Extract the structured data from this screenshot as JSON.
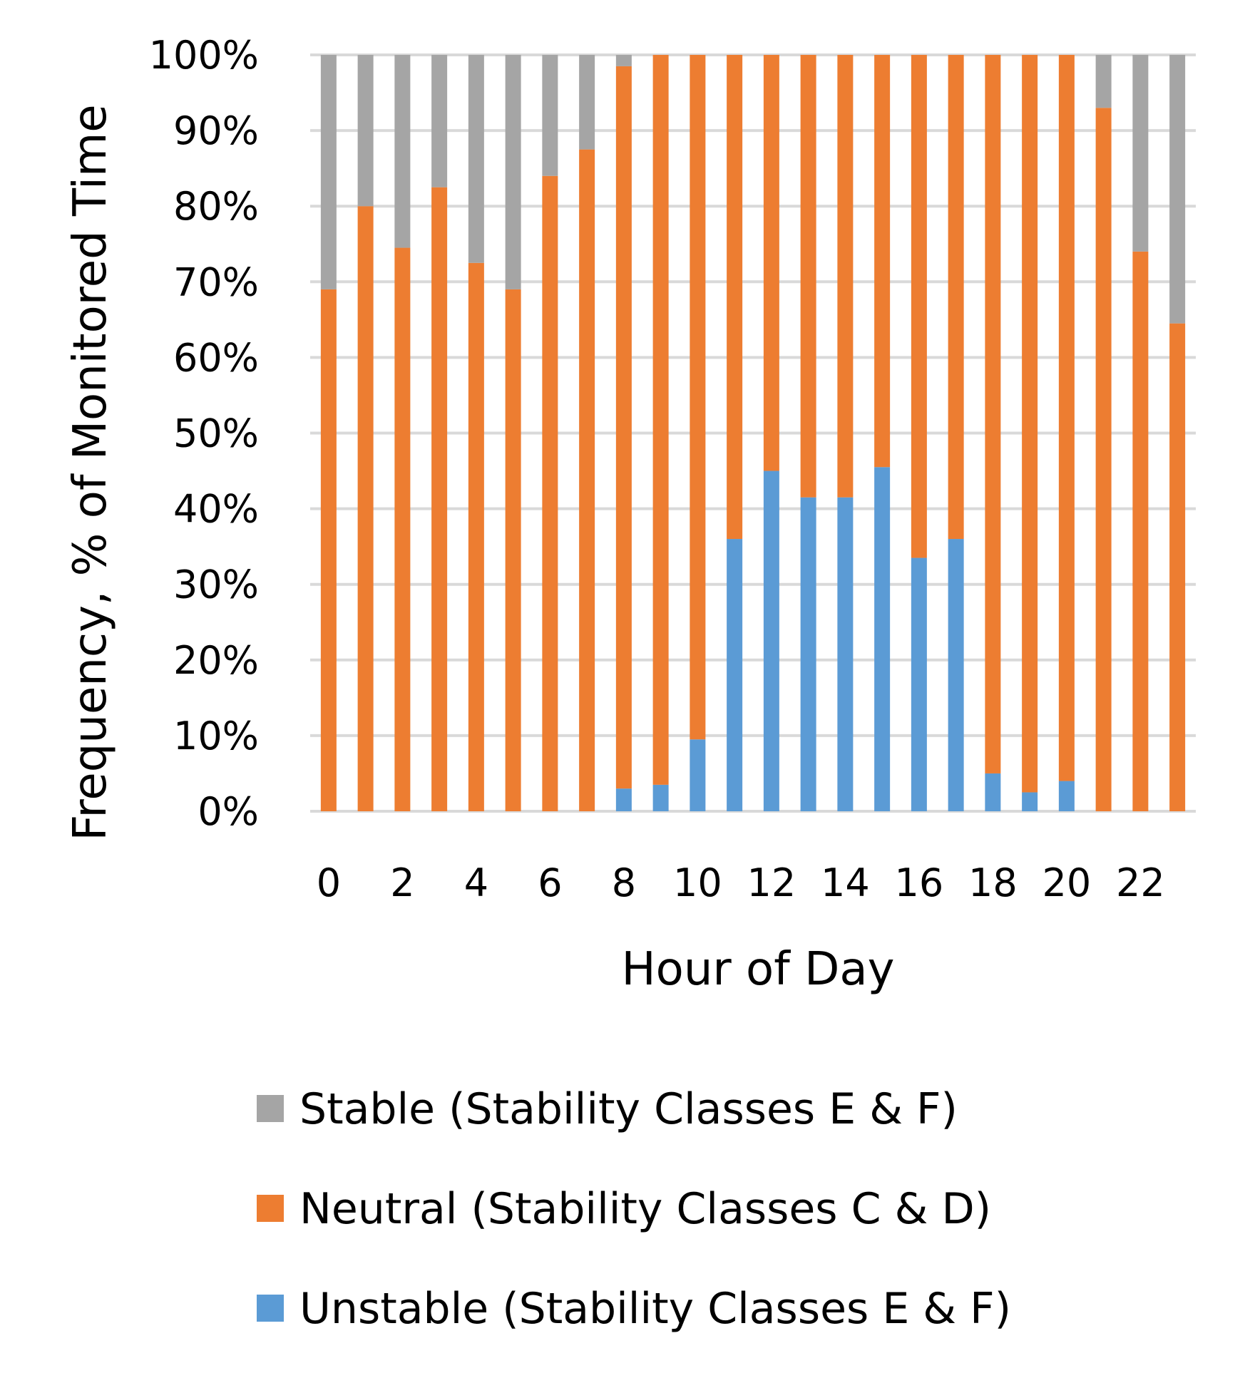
{
  "chart_data": {
    "type": "bar",
    "stacked": true,
    "xlabel": "Hour of Day",
    "ylabel": "Frequency, % of Monitored Time",
    "ylim": [
      0,
      100
    ],
    "yticks": [
      "0%",
      "10%",
      "20%",
      "30%",
      "40%",
      "50%",
      "60%",
      "70%",
      "80%",
      "90%",
      "100%"
    ],
    "categories": [
      0,
      1,
      2,
      3,
      4,
      5,
      6,
      7,
      8,
      9,
      10,
      11,
      12,
      13,
      14,
      15,
      16,
      17,
      18,
      19,
      20,
      21,
      22,
      23
    ],
    "xtick_labels": [
      "0",
      "2",
      "4",
      "6",
      "8",
      "10",
      "12",
      "14",
      "16",
      "18",
      "20",
      "22"
    ],
    "grid": true,
    "legend_position": "bottom",
    "series": [
      {
        "name": "Unstable (Stability Classes E & F)",
        "color": "#5b9bd5",
        "values": [
          0,
          0,
          0,
          0,
          0,
          0,
          0,
          0,
          3,
          3.5,
          9.5,
          36,
          45,
          41.5,
          41.5,
          45.5,
          33.5,
          36,
          5,
          2.5,
          4,
          0,
          0,
          0
        ]
      },
      {
        "name": "Neutral (Stability Classes C & D)",
        "color": "#ed7d31",
        "values": [
          69,
          80,
          74.5,
          82.5,
          72.5,
          69,
          84,
          87.5,
          95.5,
          96.5,
          90.5,
          64,
          55,
          58.5,
          58.5,
          54.5,
          66.5,
          64,
          95,
          97.5,
          96,
          93,
          74,
          64.5
        ]
      },
      {
        "name": "Stable (Stability Classes E & F)",
        "color": "#a5a5a5",
        "values": [
          31,
          20,
          25.5,
          17.5,
          27.5,
          31,
          16,
          12.5,
          1.5,
          0,
          0,
          0,
          0,
          0,
          0,
          0,
          0,
          0,
          0,
          0,
          0,
          7,
          26,
          35.5
        ]
      }
    ],
    "legend_order": [
      2,
      1,
      0
    ]
  }
}
